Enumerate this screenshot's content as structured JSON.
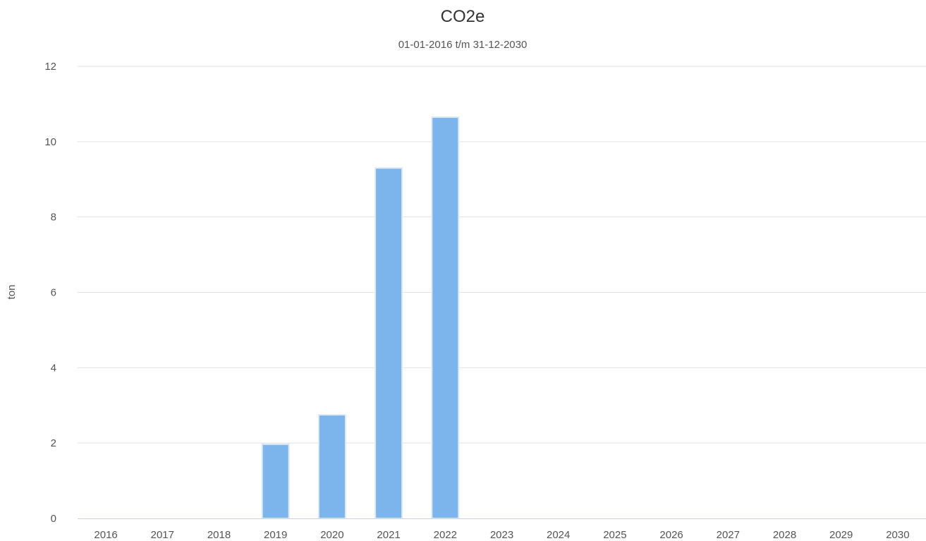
{
  "chart_data": {
    "type": "bar",
    "title": "CO2e",
    "subtitle": "01-01-2016 t/m 31-12-2030",
    "xlabel": "",
    "ylabel": "ton",
    "categories": [
      "2016",
      "2017",
      "2018",
      "2019",
      "2020",
      "2021",
      "2022",
      "2023",
      "2024",
      "2025",
      "2026",
      "2027",
      "2028",
      "2029",
      "2030"
    ],
    "values": [
      0,
      0,
      0,
      1.97,
      2.75,
      9.3,
      10.65,
      0,
      0,
      0,
      0,
      0,
      0,
      0,
      0
    ],
    "ylim": [
      0,
      12
    ],
    "yticks": [
      "0",
      "2",
      "4",
      "6",
      "8",
      "10",
      "12"
    ],
    "grid": true,
    "legend": "none",
    "colors": {
      "bar": "#7cb5ec",
      "bar_border": "#dfe8f5",
      "grid": "#e3e3e3",
      "axis": "#c7d3e6"
    }
  }
}
